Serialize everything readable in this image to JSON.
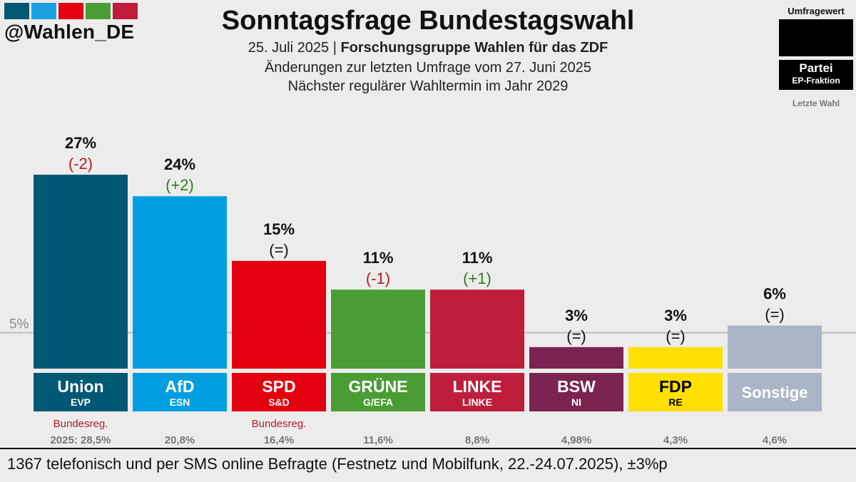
{
  "brand": {
    "handle": "@Wahlen_DE",
    "strip_colors": [
      "#005974",
      "#1ba1e2",
      "#e3000f",
      "#4a9d35",
      "#c2193f"
    ]
  },
  "header": {
    "title": "Sonntagsfrage Bundestagswahl",
    "date": "25. Juli 2025",
    "separator": "|",
    "source": "Forschungsgruppe Wahlen für das ZDF",
    "changes_note": "Änderungen zur letzten Umfrage vom 27. Juni 2025",
    "next_election": "Nächster regulärer Wahltermin im Jahr 2029"
  },
  "legend": {
    "umfragewert": "Umfragewert",
    "partei": "Partei",
    "fraktion": "EP-Fraktion",
    "letzte_wahl": "Letzte Wahl"
  },
  "footer": {
    "note": "1367 telefonisch und per SMS online Befragte (Festnetz und Mobilfunk, 22.-24.07.2025), ±3%p"
  },
  "chart_data": {
    "type": "bar",
    "title": "Sonntagsfrage Bundestagswahl",
    "threshold_label": "5%",
    "threshold_value": 5,
    "ylim": [
      0,
      27
    ],
    "categories": [
      "Union",
      "AfD",
      "SPD",
      "GRÜNE",
      "LINKE",
      "BSW",
      "FDP",
      "Sonstige"
    ],
    "values": [
      27,
      24,
      15,
      11,
      11,
      3,
      3,
      6
    ],
    "value_labels": [
      "27%",
      "24%",
      "15%",
      "11%",
      "11%",
      "3%",
      "3%",
      "6%"
    ],
    "changes": [
      "(-2)",
      "(+2)",
      "(=)",
      "(-1)",
      "(+1)",
      "(=)",
      "(=)",
      "(=)"
    ],
    "change_direction": [
      "down",
      "up",
      "same",
      "down",
      "up",
      "same",
      "same",
      "same"
    ],
    "ep_groups": [
      "EVP",
      "ESN",
      "S&D",
      "G/EFA",
      "LINKE",
      "NI",
      "RE",
      ""
    ],
    "government": [
      "Bundesreg.",
      "",
      "Bundesreg.",
      "",
      "",
      "",
      "",
      ""
    ],
    "last_election": [
      "2025: 28,5%",
      "20,8%",
      "16,4%",
      "11,6%",
      "8,8%",
      "4,98%",
      "4,3%",
      "4,6%"
    ],
    "colors": [
      "#005974",
      "#009ee0",
      "#e3000f",
      "#4a9d35",
      "#be1e3c",
      "#7b2450",
      "#ffe000",
      "#aab5c8"
    ],
    "label_colors": [
      "#ffffff",
      "#ffffff",
      "#ffffff",
      "#ffffff",
      "#ffffff",
      "#ffffff",
      "#000000",
      "#ffffff"
    ],
    "change_colors": {
      "down": "#b01e23",
      "up": "#2c7d1e",
      "same": "#111111"
    }
  }
}
